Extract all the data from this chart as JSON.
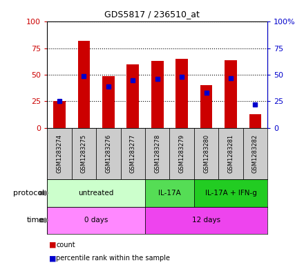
{
  "title": "GDS5817 / 236510_at",
  "samples": [
    "GSM1283274",
    "GSM1283275",
    "GSM1283276",
    "GSM1283277",
    "GSM1283278",
    "GSM1283279",
    "GSM1283280",
    "GSM1283281",
    "GSM1283282"
  ],
  "count_values": [
    25,
    82,
    49,
    60,
    63,
    65,
    40,
    64,
    13
  ],
  "percentile_values": [
    25,
    49,
    39,
    45,
    46,
    48,
    33,
    47,
    22
  ],
  "bar_color": "#cc0000",
  "dot_color": "#0000cc",
  "ylim_left": [
    0,
    100
  ],
  "ylim_right": [
    0,
    100
  ],
  "yticks_left": [
    0,
    25,
    50,
    75,
    100
  ],
  "yticks_right": [
    0,
    25,
    50,
    75,
    100
  ],
  "ytick_labels_right": [
    "0",
    "25",
    "50",
    "75",
    "100%"
  ],
  "protocol_groups": [
    {
      "label": "untreated",
      "start": 0,
      "end": 3,
      "color": "#ccffcc"
    },
    {
      "label": "IL-17A",
      "start": 4,
      "end": 5,
      "color": "#55dd55"
    },
    {
      "label": "IL-17A + IFN-g",
      "start": 6,
      "end": 8,
      "color": "#22cc22"
    }
  ],
  "time_groups": [
    {
      "label": "0 days",
      "start": 0,
      "end": 3,
      "color": "#ff88ff"
    },
    {
      "label": "12 days",
      "start": 4,
      "end": 8,
      "color": "#ee44ee"
    }
  ],
  "protocol_label": "protocol",
  "time_label": "time",
  "legend_count_label": "count",
  "legend_percentile_label": "percentile rank within the sample",
  "bar_width": 0.5,
  "sample_area_color": "#cccccc",
  "sample_border_color": "#999999",
  "left_yaxis_color": "#cc0000",
  "right_yaxis_color": "#0000cc",
  "grid_linestyle": "dotted",
  "grid_color": "#000000"
}
